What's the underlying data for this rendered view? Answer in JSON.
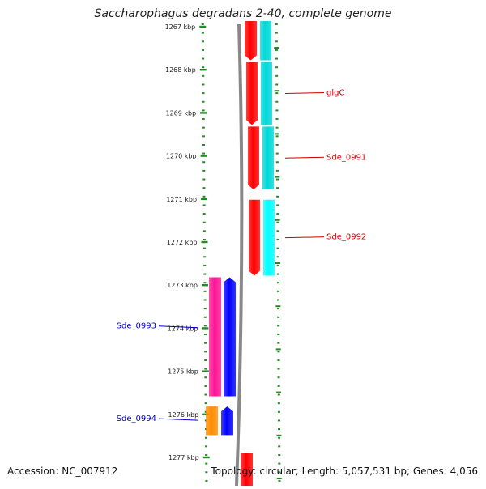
{
  "title": "Saccharophagus degradans 2-40, complete genome",
  "footer": {
    "accession": "Accession: NC_007912",
    "summary": "Topology: circular; Length: 5,057,531 bp; Genes: 4,056"
  },
  "colors": {
    "tick": "#228B22",
    "backbone": "#888888",
    "red": "#ff0000",
    "cyan": "#00d8d8",
    "cyan_bright": "#00ffff",
    "magenta": "#ff1493",
    "blue": "#0000ff",
    "orange": "#ff8c00",
    "label_right": "#cc0000",
    "label_left": "#0000cc"
  },
  "scale": {
    "unit": "kbp",
    "ticks": [
      {
        "label": "1267 kbp",
        "value": 1267
      },
      {
        "label": "1268 kbp",
        "value": 1268
      },
      {
        "label": "1269 kbp",
        "value": 1269
      },
      {
        "label": "1270 kbp",
        "value": 1270
      },
      {
        "label": "1271 kbp",
        "value": 1271
      },
      {
        "label": "1272 kbp",
        "value": 1272
      },
      {
        "label": "1273 kbp",
        "value": 1273
      },
      {
        "label": "1274 kbp",
        "value": 1274
      },
      {
        "label": "1275 kbp",
        "value": 1275
      },
      {
        "label": "1276 kbp",
        "value": 1276
      },
      {
        "label": "1277 kbp",
        "value": 1277
      }
    ]
  },
  "right_features": [
    {
      "label": "glgC",
      "start": 1267.8,
      "end": 1269.3
    },
    {
      "label": "Sde_0991",
      "start": 1269.3,
      "end": 1270.8
    },
    {
      "label": "Sde_0992",
      "start": 1271.0,
      "end": 1272.8
    }
  ],
  "left_features": [
    {
      "label": "Sde_0993",
      "start": 1272.8,
      "end": 1275.6
    },
    {
      "label": "Sde_0994",
      "start": 1275.8,
      "end": 1276.5
    }
  ],
  "partial_feature": {
    "start": 1276.9,
    "end": 1277.6
  }
}
